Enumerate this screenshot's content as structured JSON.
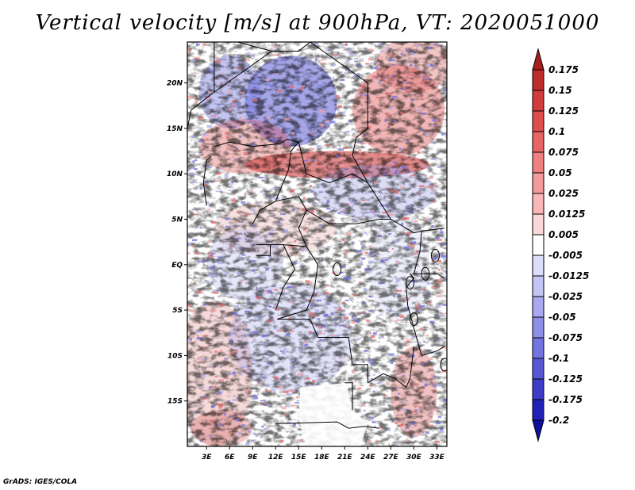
{
  "title": "Vertical velocity [m/s] at 900hPa, VT: 2020051000",
  "footer": "GrADS: IGES/COLA",
  "chart_data": {
    "type": "heatmap",
    "title": "Vertical velocity [m/s] at 900hPa, VT: 2020051000",
    "units": "m/s",
    "level": "900hPa",
    "valid_time": "2020051000",
    "x_ticks": [
      "3E",
      "6E",
      "9E",
      "12E",
      "15E",
      "18E",
      "21E",
      "24E",
      "27E",
      "30E",
      "33E"
    ],
    "x_tick_values": [
      3,
      6,
      9,
      12,
      15,
      18,
      21,
      24,
      27,
      30,
      33
    ],
    "y_ticks": [
      "20N",
      "15N",
      "10N",
      "5N",
      "EQ",
      "5S",
      "10S",
      "15S"
    ],
    "y_tick_values": [
      20,
      15,
      10,
      5,
      0,
      -5,
      -10,
      -15
    ],
    "xlim": [
      0.5,
      34.3
    ],
    "ylim": [
      -20,
      24.5
    ],
    "colorbar": {
      "labels": [
        "0.175",
        "0.15",
        "0.125",
        "0.1",
        "0.075",
        "0.05",
        "0.025",
        "0.0125",
        "0.005",
        "-0.005",
        "-0.0125",
        "-0.025",
        "-0.05",
        "-0.075",
        "-0.1",
        "-0.125",
        "-0.175",
        "-0.2"
      ],
      "colors": [
        "#a61e1e",
        "#bf2a2a",
        "#d23b3b",
        "#e14c4c",
        "#e96464",
        "#f07f7f",
        "#f59a9a",
        "#f9b7b7",
        "#fcd7d7",
        "#ffffff",
        "#dcdcfb",
        "#c4c4f5",
        "#a9a9f0",
        "#8f8fe8",
        "#7474e0",
        "#5858d6",
        "#3c3cc9",
        "#2222b8",
        "#10109e"
      ]
    }
  }
}
